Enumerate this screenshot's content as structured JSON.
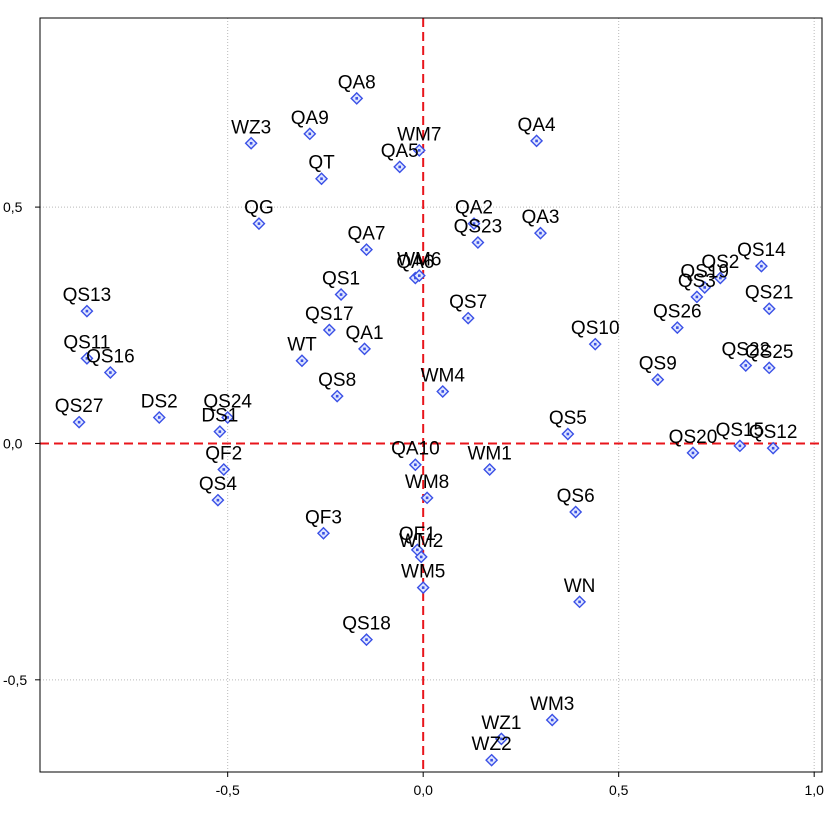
{
  "chart_data": {
    "type": "scatter",
    "title": "",
    "xlabel": "",
    "ylabel": "",
    "xlim": [
      -0.98,
      1.02
    ],
    "ylim": [
      -0.695,
      0.9
    ],
    "x_ticks": [
      -0.5,
      0.0,
      0.5,
      1.0
    ],
    "x_tick_labels": [
      "-0,5",
      "0,0",
      "0,5",
      "1,0"
    ],
    "y_ticks": [
      0.5,
      0.0,
      -0.5
    ],
    "y_tick_labels": [
      "0,5",
      "0,0",
      "-0,5"
    ],
    "grid": true,
    "reference_lines": {
      "x": 0,
      "y": 0,
      "color": "#e8151b",
      "style": "dashed"
    },
    "marker_color": "#3a50e6",
    "points": [
      {
        "label": "QA8",
        "x": -0.17,
        "y": 0.73
      },
      {
        "label": "QA9",
        "x": -0.29,
        "y": 0.655
      },
      {
        "label": "WZ3",
        "x": -0.44,
        "y": 0.635
      },
      {
        "label": "WM7",
        "x": -0.01,
        "y": 0.62
      },
      {
        "label": "QA5",
        "x": -0.06,
        "y": 0.585
      },
      {
        "label": "QA4",
        "x": 0.29,
        "y": 0.64
      },
      {
        "label": "QT",
        "x": -0.26,
        "y": 0.56
      },
      {
        "label": "QG",
        "x": -0.42,
        "y": 0.465
      },
      {
        "label": "QA2",
        "x": 0.13,
        "y": 0.465
      },
      {
        "label": "QS23",
        "x": 0.14,
        "y": 0.425
      },
      {
        "label": "QA3",
        "x": 0.3,
        "y": 0.445
      },
      {
        "label": "QA7",
        "x": -0.145,
        "y": 0.41
      },
      {
        "label": "QA6",
        "x": -0.02,
        "y": 0.35
      },
      {
        "label": "WM6",
        "x": -0.01,
        "y": 0.355
      },
      {
        "label": "QS1",
        "x": -0.21,
        "y": 0.315
      },
      {
        "label": "QS7",
        "x": 0.115,
        "y": 0.265
      },
      {
        "label": "QS17",
        "x": -0.24,
        "y": 0.24
      },
      {
        "label": "QA1",
        "x": -0.15,
        "y": 0.2
      },
      {
        "label": "WT",
        "x": -0.31,
        "y": 0.175
      },
      {
        "label": "QS8",
        "x": -0.22,
        "y": 0.1
      },
      {
        "label": "WM4",
        "x": 0.05,
        "y": 0.11
      },
      {
        "label": "QS10",
        "x": 0.44,
        "y": 0.21
      },
      {
        "label": "QS13",
        "x": -0.86,
        "y": 0.28
      },
      {
        "label": "QS11",
        "x": -0.86,
        "y": 0.18
      },
      {
        "label": "QS16",
        "x": -0.8,
        "y": 0.15
      },
      {
        "label": "QS27",
        "x": -0.88,
        "y": 0.045
      },
      {
        "label": "DS2",
        "x": -0.675,
        "y": 0.055
      },
      {
        "label": "QS24",
        "x": -0.5,
        "y": 0.055
      },
      {
        "label": "DS1",
        "x": -0.52,
        "y": 0.025
      },
      {
        "label": "QF2",
        "x": -0.51,
        "y": -0.055
      },
      {
        "label": "QS4",
        "x": -0.525,
        "y": -0.12
      },
      {
        "label": "QA10",
        "x": -0.02,
        "y": -0.045
      },
      {
        "label": "WM1",
        "x": 0.17,
        "y": -0.055
      },
      {
        "label": "WM8",
        "x": 0.01,
        "y": -0.115
      },
      {
        "label": "QS5",
        "x": 0.37,
        "y": 0.02
      },
      {
        "label": "QS6",
        "x": 0.39,
        "y": -0.145
      },
      {
        "label": "QF3",
        "x": -0.255,
        "y": -0.19
      },
      {
        "label": "QF1",
        "x": -0.015,
        "y": -0.225
      },
      {
        "label": "WM2",
        "x": -0.005,
        "y": -0.24
      },
      {
        "label": "WM5",
        "x": 0.0,
        "y": -0.305
      },
      {
        "label": "WN",
        "x": 0.4,
        "y": -0.335
      },
      {
        "label": "QS18",
        "x": -0.145,
        "y": -0.415
      },
      {
        "label": "WM3",
        "x": 0.33,
        "y": -0.585
      },
      {
        "label": "WZ1",
        "x": 0.2,
        "y": -0.625
      },
      {
        "label": "WZ2",
        "x": 0.175,
        "y": -0.67
      },
      {
        "label": "QS14",
        "x": 0.865,
        "y": 0.375
      },
      {
        "label": "QS2",
        "x": 0.76,
        "y": 0.35
      },
      {
        "label": "QS19",
        "x": 0.72,
        "y": 0.33
      },
      {
        "label": "QS3",
        "x": 0.7,
        "y": 0.31
      },
      {
        "label": "QS21",
        "x": 0.885,
        "y": 0.285
      },
      {
        "label": "QS26",
        "x": 0.65,
        "y": 0.245
      },
      {
        "label": "QS22",
        "x": 0.825,
        "y": 0.165
      },
      {
        "label": "QS25",
        "x": 0.885,
        "y": 0.16
      },
      {
        "label": "QS9",
        "x": 0.6,
        "y": 0.135
      },
      {
        "label": "QS20",
        "x": 0.69,
        "y": -0.02
      },
      {
        "label": "QS15",
        "x": 0.81,
        "y": -0.005
      },
      {
        "label": "QS12",
        "x": 0.895,
        "y": -0.01
      }
    ]
  }
}
